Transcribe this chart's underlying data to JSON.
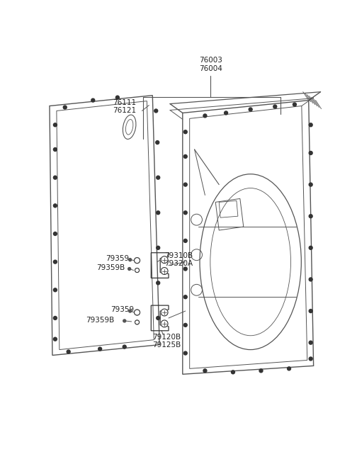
{
  "bg_color": "#ffffff",
  "line_color": "#555555",
  "dark_color": "#333333",
  "figsize": [
    4.8,
    6.55
  ],
  "dpi": 100,
  "labels": {
    "76003_76004": "76003\n76004",
    "76111_76121": "76111\n76121",
    "79310B_79320A": "79310B\n79320A",
    "79359_upper": "79359",
    "79359B_upper": "79359B",
    "79359_lower": "79359",
    "79359B_lower": "79359B",
    "79120B_79125B": "79120B\n79125B"
  }
}
